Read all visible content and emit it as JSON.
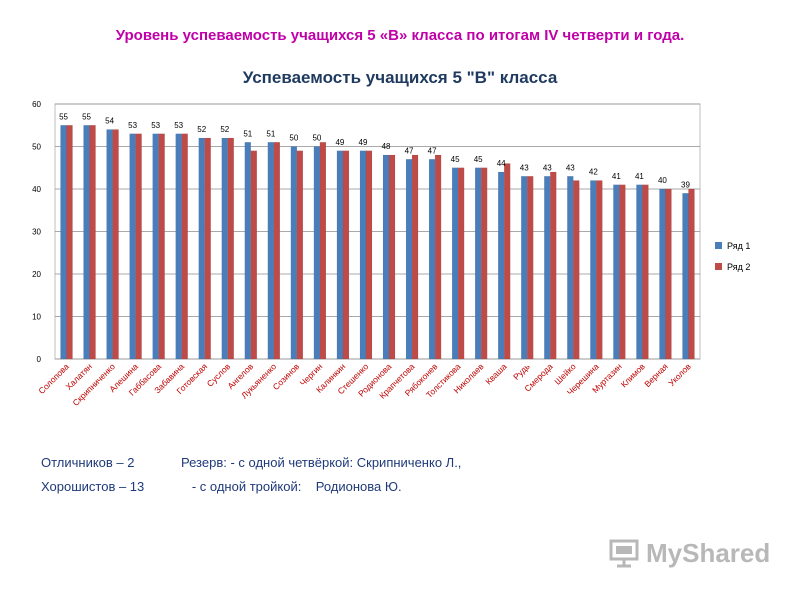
{
  "heading": "Уровень успеваемость учащихся 5 «В» класса по итогам IV четверти и года.",
  "notes": {
    "line1_left": "Отличников – 2",
    "line1_right": "Резерв: - с одной четвёркой: Скрипниченко  Л.,",
    "line2_left": "Хорошистов – 13",
    "line2_right": "   - с одной тройкой:    Родионова Ю."
  },
  "watermark": "MyShared",
  "colors": {
    "series1": "#4a7ebb",
    "series2": "#be4b48",
    "label": "#c00000",
    "title": "#1f3a5f",
    "heading": "#c000a8"
  },
  "chart_data": {
    "type": "bar",
    "title": "Успеваемость учащихся 5 \"В\" класса",
    "xlabel": "",
    "ylabel": "",
    "ylim": [
      0,
      60
    ],
    "yticks": [
      0,
      10,
      20,
      30,
      40,
      50,
      60
    ],
    "grid": true,
    "legend_position": "right",
    "categories": [
      "Солопова",
      "Халатян",
      "Скрипниченко",
      "Алешина",
      "Габбасова",
      "Забавина",
      "Готовская",
      "Суслов",
      "Ангелов",
      "Лукьяненко",
      "Созинов",
      "Чергин",
      "Калинкин",
      "Стешенко",
      "Родионова",
      "Крапчетова",
      "Рябоконев",
      "Толстикова",
      "Николаев",
      "Кваша",
      "Рудь",
      "Смерода",
      "Шейко",
      "Черешина",
      "Муртазин",
      "Климов",
      "Верная",
      "Уколов"
    ],
    "series": [
      {
        "name": "Ряд 1",
        "values": [
          55,
          55,
          54,
          53,
          53,
          53,
          52,
          52,
          51,
          51,
          50,
          50,
          49,
          49,
          48,
          47,
          47,
          45,
          45,
          44,
          43,
          43,
          43,
          42,
          41,
          41,
          40,
          39
        ]
      },
      {
        "name": "Ряд 2",
        "values": [
          55,
          55,
          54,
          53,
          53,
          53,
          52,
          52,
          49,
          51,
          49,
          51,
          49,
          49,
          48,
          48,
          48,
          45,
          45,
          46,
          43,
          44,
          42,
          42,
          41,
          41,
          40,
          40
        ]
      }
    ],
    "data_labels": [
      55,
      55,
      54,
      53,
      53,
      53,
      52,
      52,
      51,
      51,
      50,
      50,
      49,
      49,
      48,
      47,
      47,
      45,
      45,
      44,
      43,
      43,
      43,
      42,
      41,
      41,
      40,
      39
    ]
  }
}
